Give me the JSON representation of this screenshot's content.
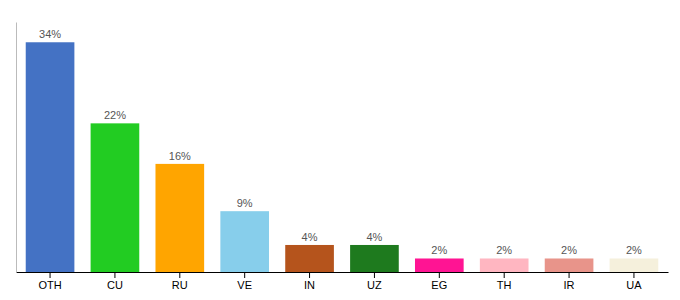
{
  "chart_data": {
    "type": "bar",
    "categories": [
      "OTH",
      "CU",
      "RU",
      "VE",
      "IN",
      "UZ",
      "EG",
      "TH",
      "IR",
      "UA"
    ],
    "values": [
      34,
      22,
      16,
      9,
      4,
      4,
      2,
      2,
      2,
      2
    ],
    "value_labels": [
      "34%",
      "22%",
      "16%",
      "9%",
      "4%",
      "4%",
      "2%",
      "2%",
      "2%",
      "2%"
    ],
    "colors": [
      "#4472c4",
      "#22cc22",
      "#ffa500",
      "#87ceeb",
      "#b5541c",
      "#1e7a1e",
      "#ff1493",
      "#ffb6c1",
      "#e8948a",
      "#f5f0dc"
    ],
    "ylim": [
      0,
      37
    ],
    "data_labels": true,
    "tick_labels": "x"
  }
}
